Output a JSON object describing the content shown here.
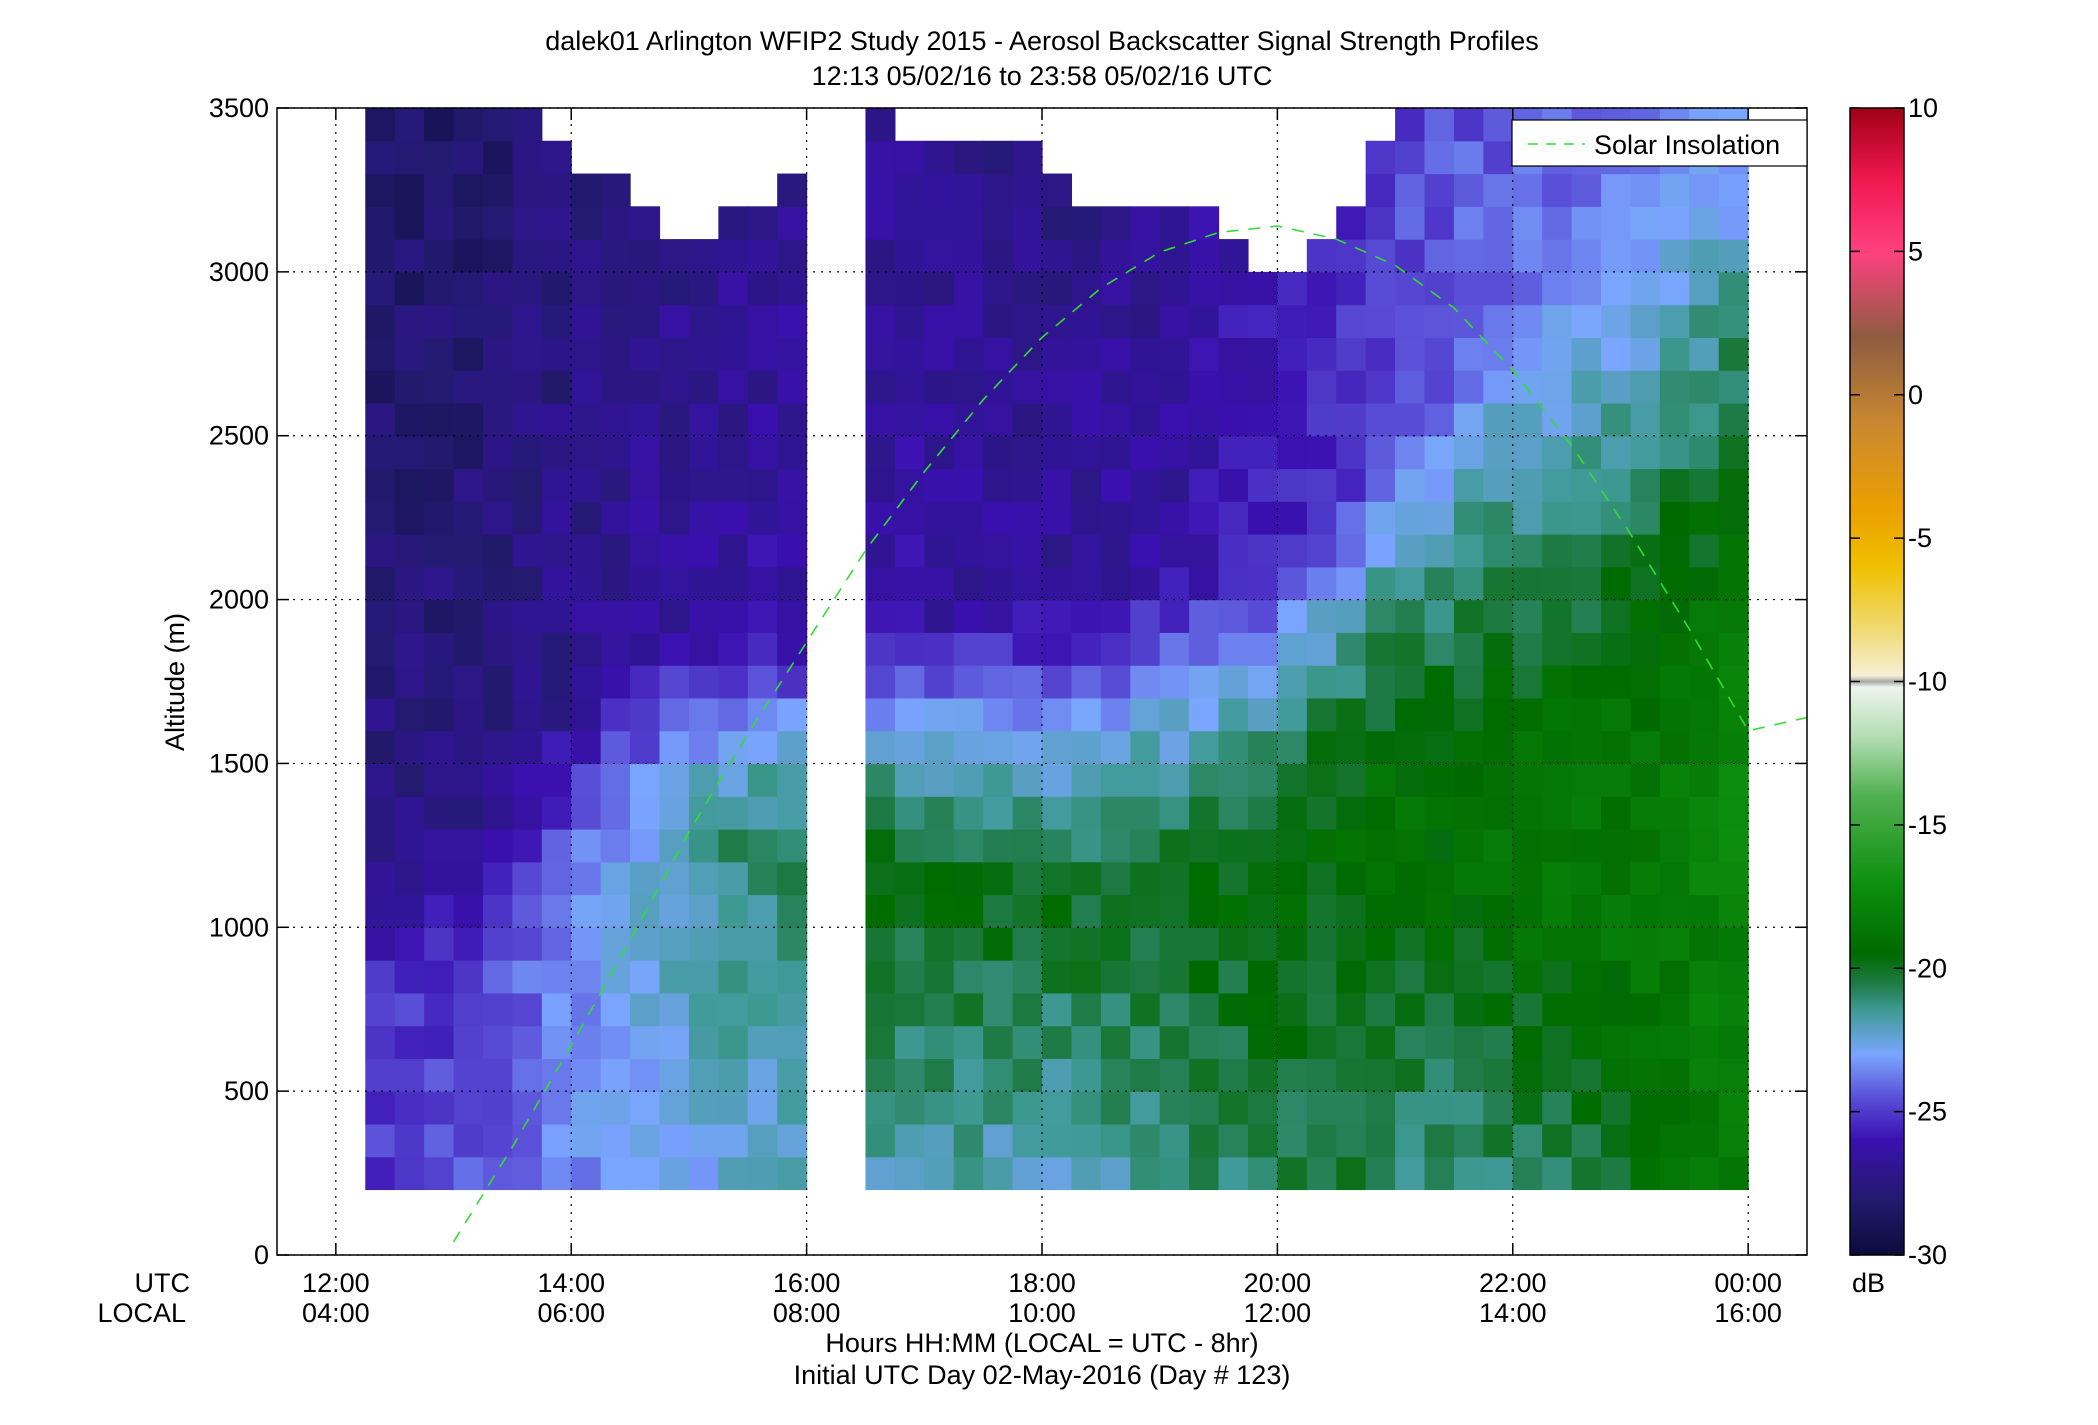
{
  "chart_data": {
    "type": "heatmap",
    "title": "dalek01 Arlington WFIP2 Study 2015 - Aerosol Backscatter Signal Strength Profiles",
    "subtitle": "12:13 05/02/16 to 23:58 05/02/16  UTC",
    "ylabel": "Altitude (m)",
    "xlabel": "Hours HH:MM  (LOCAL = UTC - 8hr)",
    "xlabel2": "Initial UTC Day 02-May-2016 (Day # 123)",
    "x_row_labels": {
      "utc": "UTC",
      "local": "LOCAL"
    },
    "xlim": [
      11.5,
      24.5
    ],
    "ylim": [
      0,
      3500
    ],
    "x_ticks": [
      {
        "value": 12,
        "utc": "12:00",
        "local": "04:00"
      },
      {
        "value": 14,
        "utc": "14:00",
        "local": "06:00"
      },
      {
        "value": 16,
        "utc": "16:00",
        "local": "08:00"
      },
      {
        "value": 18,
        "utc": "18:00",
        "local": "10:00"
      },
      {
        "value": 20,
        "utc": "20:00",
        "local": "12:00"
      },
      {
        "value": 22,
        "utc": "22:00",
        "local": "14:00"
      },
      {
        "value": 24,
        "utc": "00:00",
        "local": "16:00"
      }
    ],
    "y_ticks": [
      {
        "value": 0,
        "label": "0"
      },
      {
        "value": 500,
        "label": "500"
      },
      {
        "value": 1000,
        "label": "1000"
      },
      {
        "value": 1500,
        "label": "1500"
      },
      {
        "value": 2000,
        "label": "2000"
      },
      {
        "value": 2500,
        "label": "2500"
      },
      {
        "value": 3000,
        "label": "3000"
      },
      {
        "value": 3500,
        "label": "3500"
      }
    ],
    "grid": true,
    "colorbar": {
      "min": -30,
      "max": 10,
      "unit": "dB",
      "ticks": [
        {
          "value": 10,
          "label": "10"
        },
        {
          "value": 5,
          "label": "5"
        },
        {
          "value": 0,
          "label": "0"
        },
        {
          "value": -5,
          "label": "-5"
        },
        {
          "value": -10,
          "label": "-10"
        },
        {
          "value": -15,
          "label": "-15"
        },
        {
          "value": -20,
          "label": "-20"
        },
        {
          "value": -25,
          "label": "-25"
        },
        {
          "value": -30,
          "label": "-30"
        }
      ],
      "stops": [
        {
          "value": -30,
          "color": "#0c0c3c"
        },
        {
          "value": -28,
          "color": "#241a70"
        },
        {
          "value": -26,
          "color": "#3a10b0"
        },
        {
          "value": -24.5,
          "color": "#5a50d8"
        },
        {
          "value": -23,
          "color": "#7aa6ff"
        },
        {
          "value": -21.5,
          "color": "#3f9a96"
        },
        {
          "value": -20.5,
          "color": "#1e7a44"
        },
        {
          "value": -19.5,
          "color": "#006a00"
        },
        {
          "value": -17,
          "color": "#0e9010"
        },
        {
          "value": -14,
          "color": "#50b050"
        },
        {
          "value": -12,
          "color": "#b0dcb0"
        },
        {
          "value": -10.2,
          "color": "#eef4ee"
        },
        {
          "value": -10,
          "color": "#a8a8a8"
        },
        {
          "value": -9.8,
          "color": "#f6efd6"
        },
        {
          "value": -8,
          "color": "#f0d868"
        },
        {
          "value": -6,
          "color": "#f0c000"
        },
        {
          "value": -4,
          "color": "#eca000"
        },
        {
          "value": -1,
          "color": "#c88830"
        },
        {
          "value": 2,
          "color": "#8e5c40"
        },
        {
          "value": 5,
          "color": "#ff4080"
        },
        {
          "value": 7.5,
          "color": "#f01850"
        },
        {
          "value": 10,
          "color": "#a00018"
        }
      ]
    },
    "grid_spec": {
      "altitude_bins_m": [
        200,
        3500
      ],
      "altitude_step_m": 100,
      "time_step_hr": 0.25,
      "segments": [
        {
          "start_hr": 12.25,
          "end_hr": 16.0
        },
        {
          "start_hr": 16.5,
          "end_hr": 24.0
        }
      ]
    },
    "series": [
      {
        "name": "Solar Insolation",
        "color": "#33dd33",
        "style": "dashed",
        "x": [
          13.0,
          13.5,
          14.0,
          14.5,
          15.0,
          15.5,
          16.0,
          16.5,
          17.0,
          17.5,
          18.0,
          18.5,
          19.0,
          19.5,
          20.0,
          20.5,
          21.0,
          21.5,
          22.0,
          22.5,
          23.0,
          23.5,
          24.0,
          24.5
        ],
        "y": [
          40,
          330,
          640,
          960,
          1290,
          1590,
          1870,
          2150,
          2390,
          2610,
          2800,
          2950,
          3060,
          3120,
          3140,
          3100,
          3020,
          2890,
          2700,
          2470,
          2200,
          1910,
          1600,
          1640
        ]
      }
    ],
    "legend": {
      "placement": "top-right"
    },
    "signal_profile_model": {
      "description_keys": [
        "time_hr",
        "low_db",
        "peak_db",
        "peak_alt_m",
        "layer_top_m",
        "free_db",
        "data_ceiling_m"
      ],
      "keyframes": [
        [
          12.25,
          -25.0,
          -25.5,
          800,
          1300,
          -27.5,
          3500
        ],
        [
          13.0,
          -24.5,
          -25.0,
          800,
          1300,
          -27.5,
          3500
        ],
        [
          13.5,
          -24.0,
          -24.5,
          900,
          1500,
          -27.3,
          3500
        ],
        [
          14.0,
          -23.5,
          -23.5,
          1000,
          1700,
          -27.0,
          3250
        ],
        [
          14.5,
          -23.0,
          -22.5,
          1100,
          1850,
          -26.8,
          3200
        ],
        [
          15.0,
          -22.8,
          -21.5,
          1200,
          1900,
          -26.6,
          3050
        ],
        [
          15.5,
          -22.5,
          -21.0,
          1250,
          1900,
          -26.5,
          3150
        ],
        [
          16.0,
          -22.0,
          -20.8,
          1300,
          1900,
          -26.3,
          3300
        ],
        [
          16.5,
          -21.8,
          -19.8,
          1150,
          1950,
          -26.2,
          3500
        ],
        [
          17.0,
          -21.8,
          -19.6,
          1150,
          1950,
          -26.4,
          3350
        ],
        [
          17.5,
          -22.0,
          -19.8,
          1100,
          1950,
          -26.6,
          3350
        ],
        [
          18.0,
          -22.2,
          -20.0,
          1050,
          2000,
          -26.8,
          3300
        ],
        [
          18.5,
          -22.0,
          -20.0,
          1050,
          2050,
          -26.6,
          3150
        ],
        [
          19.0,
          -21.5,
          -19.8,
          1100,
          2050,
          -26.4,
          3150
        ],
        [
          19.5,
          -21.0,
          -19.6,
          1150,
          2100,
          -26.0,
          3150
        ],
        [
          20.0,
          -20.8,
          -19.5,
          1200,
          2200,
          -25.8,
          2900
        ],
        [
          20.5,
          -20.5,
          -19.3,
          1300,
          2300,
          -25.0,
          3100
        ],
        [
          21.0,
          -21.0,
          -19.0,
          1400,
          2500,
          -24.5,
          3500
        ],
        [
          21.5,
          -21.5,
          -18.8,
          1300,
          2700,
          -24.2,
          3500
        ],
        [
          22.0,
          -21.0,
          -18.6,
          1200,
          2900,
          -24.0,
          3500
        ],
        [
          22.5,
          -20.5,
          -18.5,
          1200,
          3000,
          -23.8,
          3500
        ],
        [
          23.0,
          -20.0,
          -18.4,
          1200,
          3100,
          -23.5,
          3500
        ],
        [
          23.5,
          -19.0,
          -18.0,
          1300,
          3200,
          -23.2,
          3500
        ],
        [
          24.0,
          -18.0,
          -17.5,
          1400,
          3300,
          -23.0,
          3500
        ]
      ]
    }
  }
}
